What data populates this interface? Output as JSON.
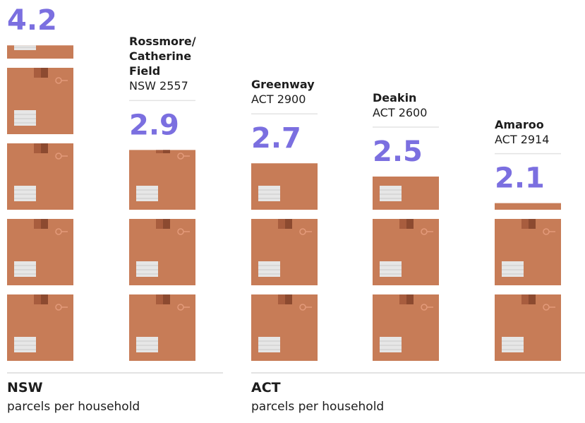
{
  "chart_data": {
    "type": "pictogram",
    "categories": [
      null,
      "Rossmore/ Catherine Field",
      "Greenway",
      "Deakin",
      "Amaroo"
    ],
    "subtitles": [
      null,
      "NSW 2557",
      "ACT 2900",
      "ACT 2600",
      "ACT 2914"
    ],
    "values": [
      4.2,
      2.9,
      2.7,
      2.5,
      2.1
    ],
    "color": "#7b6fe0",
    "box_color": "#c77c57",
    "groups": [
      {
        "name": "NSW",
        "label": "parcels per household"
      },
      {
        "name": "ACT",
        "label": "parcels per household"
      }
    ]
  }
}
